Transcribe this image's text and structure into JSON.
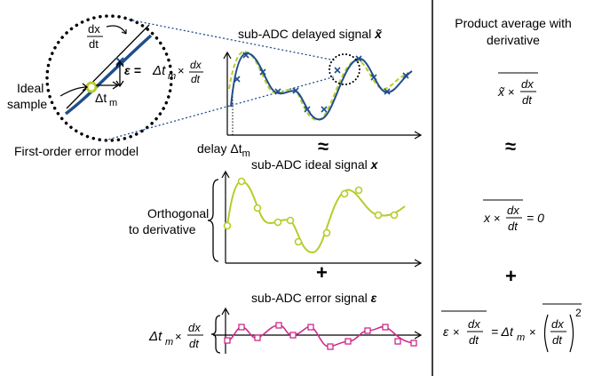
{
  "left": {
    "zoom": {
      "dx_num": "dx",
      "dx_den": "dt",
      "epsilon_label": "ε =",
      "epsilon_rhs_dt": "Δt",
      "epsilon_rhs_m": "m",
      "epsilon_times": "×",
      "epsilon_frac_num": "dx",
      "epsilon_frac_den": "dt",
      "delta_t": "Δt",
      "delta_m": "m",
      "ideal_label_1": "Ideal",
      "ideal_label_2": "sample",
      "caption": "First-order error model"
    },
    "delayed": {
      "title": "sub-ADC delayed signal ",
      "title_sym": "x̃",
      "xaxis_label": "delay Δt",
      "xaxis_sub": "m"
    },
    "approx_symbol": "≈",
    "ideal": {
      "title": "sub-ADC ideal signal ",
      "title_sym": "x",
      "side_label_1": "Orthogonal",
      "side_label_2": "to derivative"
    },
    "plus_symbol": "+",
    "error": {
      "title": "sub-ADC error signal ",
      "title_sym": "ε",
      "side_dt": "Δt",
      "side_m": "m",
      "side_times": "×",
      "side_num": "dx",
      "side_den": "dt"
    }
  },
  "right": {
    "header_1": "Product average with",
    "header_2": "derivative",
    "eq1": {
      "sym": "x̃",
      "times": "×",
      "num": "dx",
      "den": "dt"
    },
    "approx_symbol": "≈",
    "eq2": {
      "sym": "x",
      "times": "×",
      "num": "dx",
      "den": "dt",
      "rhs": "= 0"
    },
    "plus_symbol": "+",
    "eq3": {
      "sym": "ε",
      "times": "×",
      "num": "dx",
      "den": "dt",
      "eq": "= Δt",
      "sub": "m",
      "times2": "×",
      "pnum": "dx",
      "pden": "dt",
      "power": "2"
    }
  },
  "colors": {
    "blue": "#1f4e8c",
    "green": "#b8cc2a",
    "magenta": "#cc2a8c",
    "black": "#000000"
  }
}
